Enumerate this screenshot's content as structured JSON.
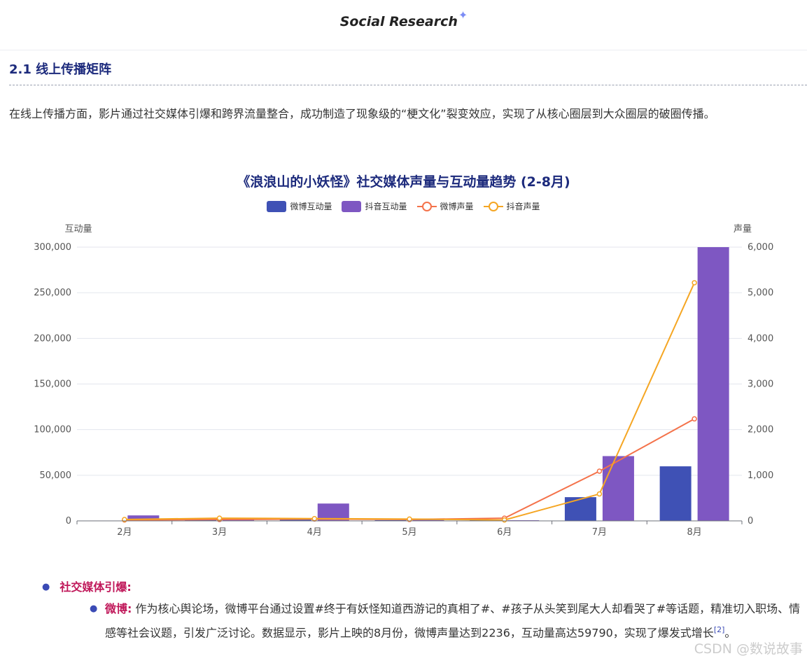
{
  "header": {
    "brand": "Social Research",
    "spark": "✦"
  },
  "section": {
    "title": "2.1 线上传播矩阵",
    "paragraph": "在线上传播方面，影片通过社交媒体引爆和跨界流量整合，成功制造了现象级的“梗文化”裂变效应，实现了从核心圈层到大众圈层的破圈传播。"
  },
  "chart_data": {
    "type": "bar",
    "title": "《浪浪山的小妖怪》社交媒体声量与互动量趋势 (2-8月)",
    "categories": [
      "2月",
      "3月",
      "4月",
      "5月",
      "6月",
      "7月",
      "8月"
    ],
    "ylabel_left": "互动量",
    "ylabel_right": "声量",
    "ylim_left": [
      0,
      300000
    ],
    "ylim_right": [
      0,
      6000
    ],
    "yticks_left": [
      "0",
      "50,000",
      "100,000",
      "150,000",
      "200,000",
      "250,000",
      "300,000"
    ],
    "yticks_right": [
      "0",
      "1,000",
      "2,000",
      "3,000",
      "4,000",
      "5,000",
      "6,000"
    ],
    "legend_position": "top-center",
    "grid": true,
    "series": [
      {
        "name": "微博互动量",
        "kind": "bar",
        "axis": "left",
        "color": "#3f51b5",
        "values": [
          400,
          1200,
          1600,
          800,
          900,
          26000,
          59790
        ]
      },
      {
        "name": "抖音互动量",
        "kind": "bar",
        "axis": "left",
        "color": "#7e57c2",
        "values": [
          6000,
          1500,
          19000,
          1200,
          700,
          71000,
          300000
        ]
      },
      {
        "name": "微博声量",
        "kind": "line",
        "axis": "right",
        "color": "#f4724a",
        "values": [
          20,
          30,
          40,
          30,
          60,
          1090,
          2236
        ]
      },
      {
        "name": "抖音声量",
        "kind": "line",
        "axis": "right",
        "color": "#f5a623",
        "values": [
          30,
          60,
          50,
          40,
          20,
          590,
          5220
        ]
      }
    ]
  },
  "bullets": {
    "level1_label": "社交媒体引爆:",
    "level2_label": "微博:",
    "level2_text": " 作为核心舆论场，微博平台通过设置#终于有妖怪知道西游记的真相了#、#孩子从头笑到尾大人却看哭了#等话题，精准切入职场、情感等社会议题，引发广泛讨论。数据显示，影片上映的8月份，微博声量达到2236，互动量高达59790，实现了爆发式增长",
    "citation": "[2]",
    "end": "。"
  },
  "watermark": "CSDN @数说故事"
}
